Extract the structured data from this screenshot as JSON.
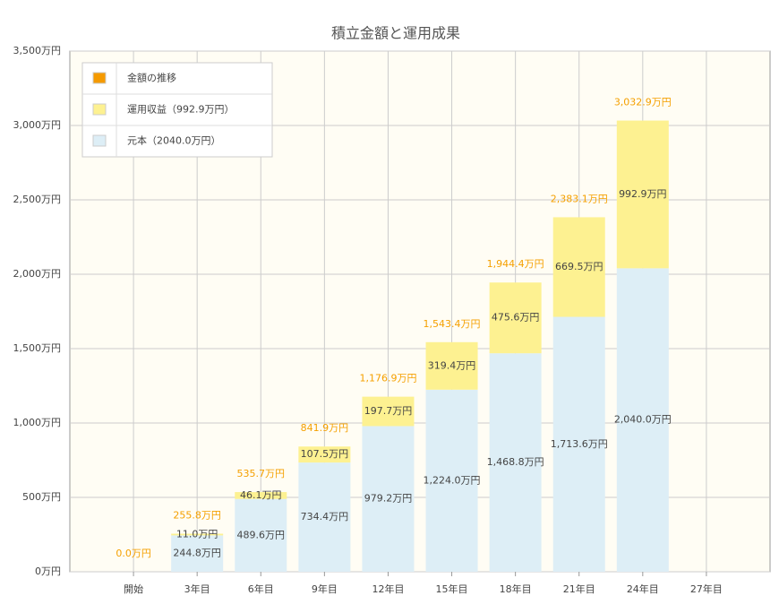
{
  "chart_data": {
    "type": "stacked_bar",
    "title": "積立金額と運用成果",
    "categories": [
      "開始",
      "3年目",
      "6年目",
      "9年目",
      "12年目",
      "15年目",
      "18年目",
      "21年目",
      "24年目",
      "27年目"
    ],
    "ylim": [
      0,
      3500
    ],
    "yticks": [
      {
        "value": 0,
        "label": "0万円"
      },
      {
        "value": 500,
        "label": "500万円"
      },
      {
        "value": 1000,
        "label": "1,000万円"
      },
      {
        "value": 1500,
        "label": "1,500万円"
      },
      {
        "value": 2000,
        "label": "2,000万円"
      },
      {
        "value": 2500,
        "label": "2,500万円"
      },
      {
        "value": 3000,
        "label": "3,000万円"
      },
      {
        "value": 3500,
        "label": "3,500万円"
      }
    ],
    "grid": true,
    "legend": "top-left",
    "series": [
      {
        "name": "金額の推移",
        "color": "#f59a00",
        "kind": "total",
        "values": [
          0.0,
          255.8,
          535.7,
          841.9,
          1176.9,
          1543.4,
          1944.4,
          2383.1,
          3032.9,
          null
        ],
        "value_labels": [
          "0.0万円",
          "255.8万円",
          "535.7万円",
          "841.9万円",
          "1,176.9万円",
          "1,543.4万円",
          "1,944.4万円",
          "2,383.1万円",
          "3,032.9万円",
          null
        ]
      },
      {
        "name": "運用収益（992.9万円）",
        "color": "#fdf191",
        "values": [
          0,
          11.0,
          46.1,
          107.5,
          197.7,
          319.4,
          475.6,
          669.5,
          992.9,
          null
        ],
        "value_labels": [
          null,
          "11.0万円",
          "46.1万円",
          "107.5万円",
          "197.7万円",
          "319.4万円",
          "475.6万円",
          "669.5万円",
          "992.9万円",
          null
        ]
      },
      {
        "name": "元本（2040.0万円）",
        "color": "#ddeef6",
        "values": [
          0,
          244.8,
          489.6,
          734.4,
          979.2,
          1224.0,
          1468.8,
          1713.6,
          2040.0,
          null
        ],
        "value_labels": [
          null,
          "244.8万円",
          "489.6万円",
          "734.4万円",
          "979.2万円",
          "1,224.0万円",
          "1,468.8万円",
          "1,713.6万円",
          "2,040.0万円",
          null
        ]
      }
    ]
  }
}
